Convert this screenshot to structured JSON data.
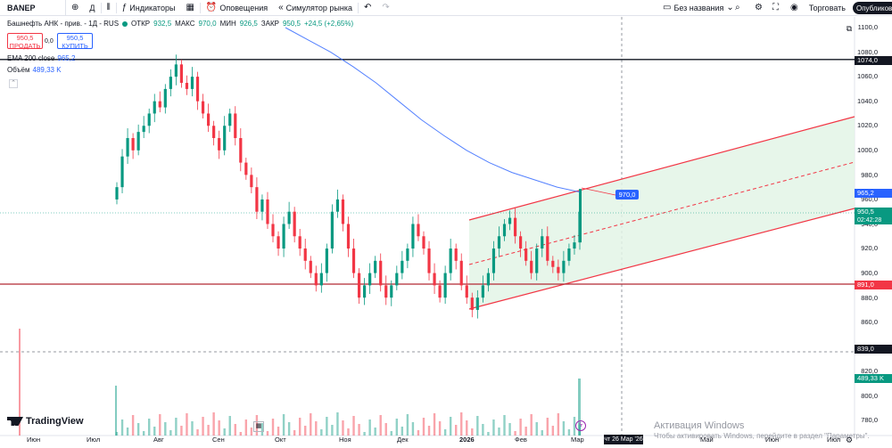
{
  "toolbar": {
    "symbol": "BANEP",
    "add_icon": "plus-circle-icon",
    "interval": "Д",
    "chart_type_icon": "candles-icon",
    "indicators_label": "Индикаторы",
    "layout_icon": "grid-icon",
    "alerts_label": "Оповещения",
    "replay_label": "Симулятор рынка",
    "undo_icon": "undo-icon",
    "layout_name": "Без названия",
    "trade_label": "Торговать",
    "publish_label": "Опубликовать"
  },
  "legend": {
    "title": "Башнефть АНК - прив. - 1Д - RUS",
    "open_label": "ОТКР",
    "open": "932,5",
    "high_label": "МАКС",
    "high": "970,0",
    "low_label": "МИН",
    "low": "926,5",
    "close_label": "ЗАКР",
    "close": "950,5",
    "change": "+24,5 (+2,65%)"
  },
  "order": {
    "sell_price": "950,5",
    "sell_label": "ПРОДАТЬ",
    "spread": "0,0",
    "buy_price": "950,5",
    "buy_label": "КУПИТЬ"
  },
  "ema": {
    "label": "EMA 200 close",
    "value": "965,2"
  },
  "volume": {
    "label": "Объём",
    "value": "489,33 K"
  },
  "price_axis": {
    "ticks": [
      "1100,0",
      "1080,0",
      "1060,0",
      "1040,0",
      "1020,0",
      "1000,0",
      "980,0",
      "960,0",
      "940,0",
      "920,0",
      "900,0",
      "880,0",
      "860,0",
      "820,0",
      "800,0",
      "780,0"
    ],
    "labels": {
      "line_top": "1074,0",
      "ema": "965,2",
      "last": "950,5",
      "countdown": "02:42:28",
      "line_bottom": "891,0",
      "cursor": "839,0",
      "volume": "489,33 K"
    }
  },
  "time_axis": {
    "ticks": [
      "Июн",
      "Июл",
      "Авг",
      "Сен",
      "Окт",
      "Ноя",
      "Дек",
      "2026",
      "Фев",
      "Мар",
      "Май",
      "Июн",
      "Июл"
    ],
    "cursor_date": "чт 26 Мар '26"
  },
  "callout": "970,0",
  "brand": "TradingView",
  "watermark": {
    "title": "Активация Windows",
    "subtitle": "Чтобы активировать Windows, перейдите в раздел \"Параметры\"."
  },
  "colors": {
    "up": "#089981",
    "down": "#f23645",
    "ema": "#2962ff",
    "channel_fill": "#e3f5e6",
    "channel_line": "#f23645"
  },
  "chart_data": {
    "type": "candlestick",
    "price_range": [
      780,
      1100
    ],
    "ema": [
      1100,
      1090,
      1080,
      1068,
      1055,
      1040,
      1025,
      1012,
      1000,
      990,
      982,
      976,
      970,
      966
    ],
    "horizontal_lines": [
      1074,
      891
    ],
    "candles_close": [
      970,
      995,
      1010,
      1000,
      1015,
      1020,
      1030,
      1040,
      1035,
      1050,
      1060,
      1070,
      1055,
      1050,
      1060,
      1040,
      1030,
      1020,
      1010,
      1000,
      1020,
      1030,
      1010,
      990,
      980,
      970,
      950,
      960,
      940,
      930,
      920,
      940,
      950,
      930,
      920,
      910,
      900,
      890,
      900,
      920,
      950,
      960,
      940,
      920,
      900,
      880,
      890,
      900,
      910,
      890,
      880,
      890,
      900,
      910,
      920,
      940,
      930,
      920,
      900,
      890,
      880,
      900,
      920,
      910,
      890,
      880,
      870,
      880,
      890,
      900,
      920,
      930,
      940,
      945,
      930,
      920,
      910,
      900,
      920,
      930,
      910,
      905,
      900,
      910,
      920,
      925,
      950
    ]
  }
}
